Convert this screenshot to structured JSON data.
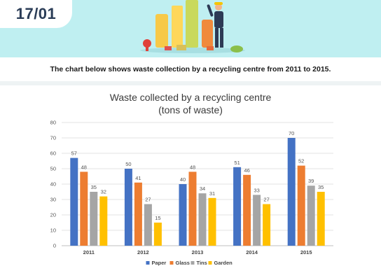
{
  "header": {
    "date": "17/01",
    "caption": "The chart below shows waste collection by a recycling centre from 2011 to 2015."
  },
  "colors": {
    "header_bg": "#bfeff1",
    "paper": "#4472c4",
    "glass": "#ed7d31",
    "tins": "#a5a5a5",
    "garden": "#ffc000"
  },
  "chart_data": {
    "type": "bar",
    "title": "Waste collected by a recycling centre",
    "subtitle": "(tons of waste)",
    "categories": [
      "2011",
      "2012",
      "2013",
      "2014",
      "2015"
    ],
    "series": [
      {
        "name": "Paper",
        "values": [
          57,
          50,
          40,
          51,
          70
        ]
      },
      {
        "name": "Glass",
        "values": [
          48,
          41,
          48,
          46,
          52
        ]
      },
      {
        "name": "Tins",
        "values": [
          35,
          27,
          34,
          33,
          39
        ]
      },
      {
        "name": "Garden",
        "values": [
          32,
          15,
          31,
          27,
          35
        ]
      }
    ],
    "ylim": [
      0,
      80
    ],
    "yticks": [
      "0",
      "10",
      "20",
      "30",
      "40",
      "50",
      "60",
      "70",
      "80"
    ],
    "grid": true,
    "legend": "bottom"
  }
}
